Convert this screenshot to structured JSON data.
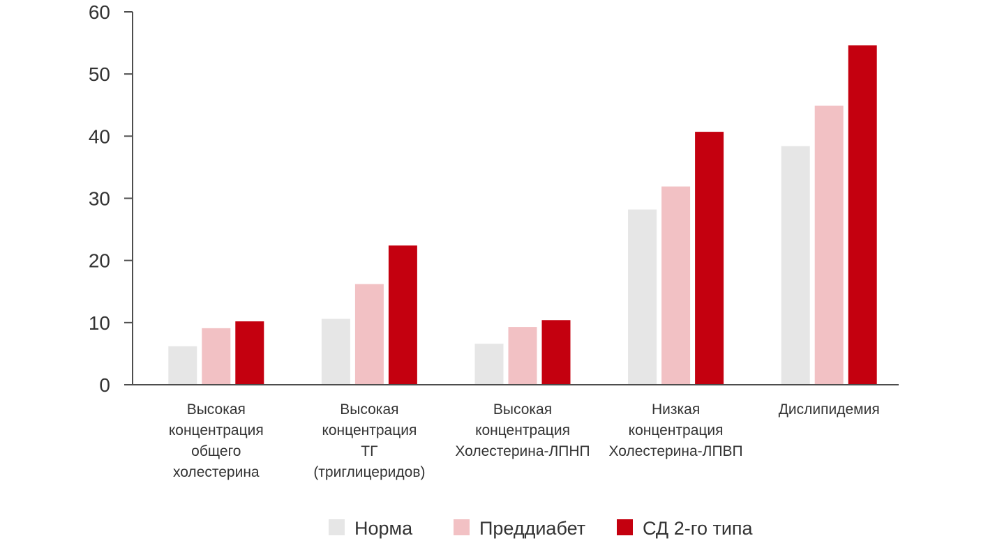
{
  "chart_data": {
    "type": "bar",
    "title": "",
    "xlabel": "",
    "ylabel": "",
    "ylim": [
      0,
      60
    ],
    "yticks": [
      0,
      10,
      20,
      30,
      40,
      50,
      60
    ],
    "grid": false,
    "legend_position": "bottom",
    "categories": [
      [
        "Высокая",
        "концентрация",
        "общего",
        "холестерина"
      ],
      [
        "Высокая",
        "концентрация",
        "ТГ",
        "(триглицеридов)"
      ],
      [
        "Высокая",
        "концентрация",
        "Холестерина-ЛПНП"
      ],
      [
        "Низкая",
        "концентрация",
        "Холестерина-ЛПВП"
      ],
      [
        "Дислипидемия"
      ]
    ],
    "series": [
      {
        "name": "Норма",
        "color": "#e6e6e6",
        "values": [
          6.2,
          10.6,
          6.6,
          28.2,
          38.4
        ]
      },
      {
        "name": "Преддиабет",
        "color": "#f2c1c4",
        "values": [
          9.1,
          16.2,
          9.3,
          31.9,
          44.9
        ]
      },
      {
        "name": "СД 2-го типа",
        "color": "#c4000f",
        "values": [
          10.2,
          22.4,
          10.4,
          40.7,
          54.6
        ]
      }
    ]
  },
  "colors": {
    "axis": "#4d4d4d",
    "text": "#333333"
  }
}
